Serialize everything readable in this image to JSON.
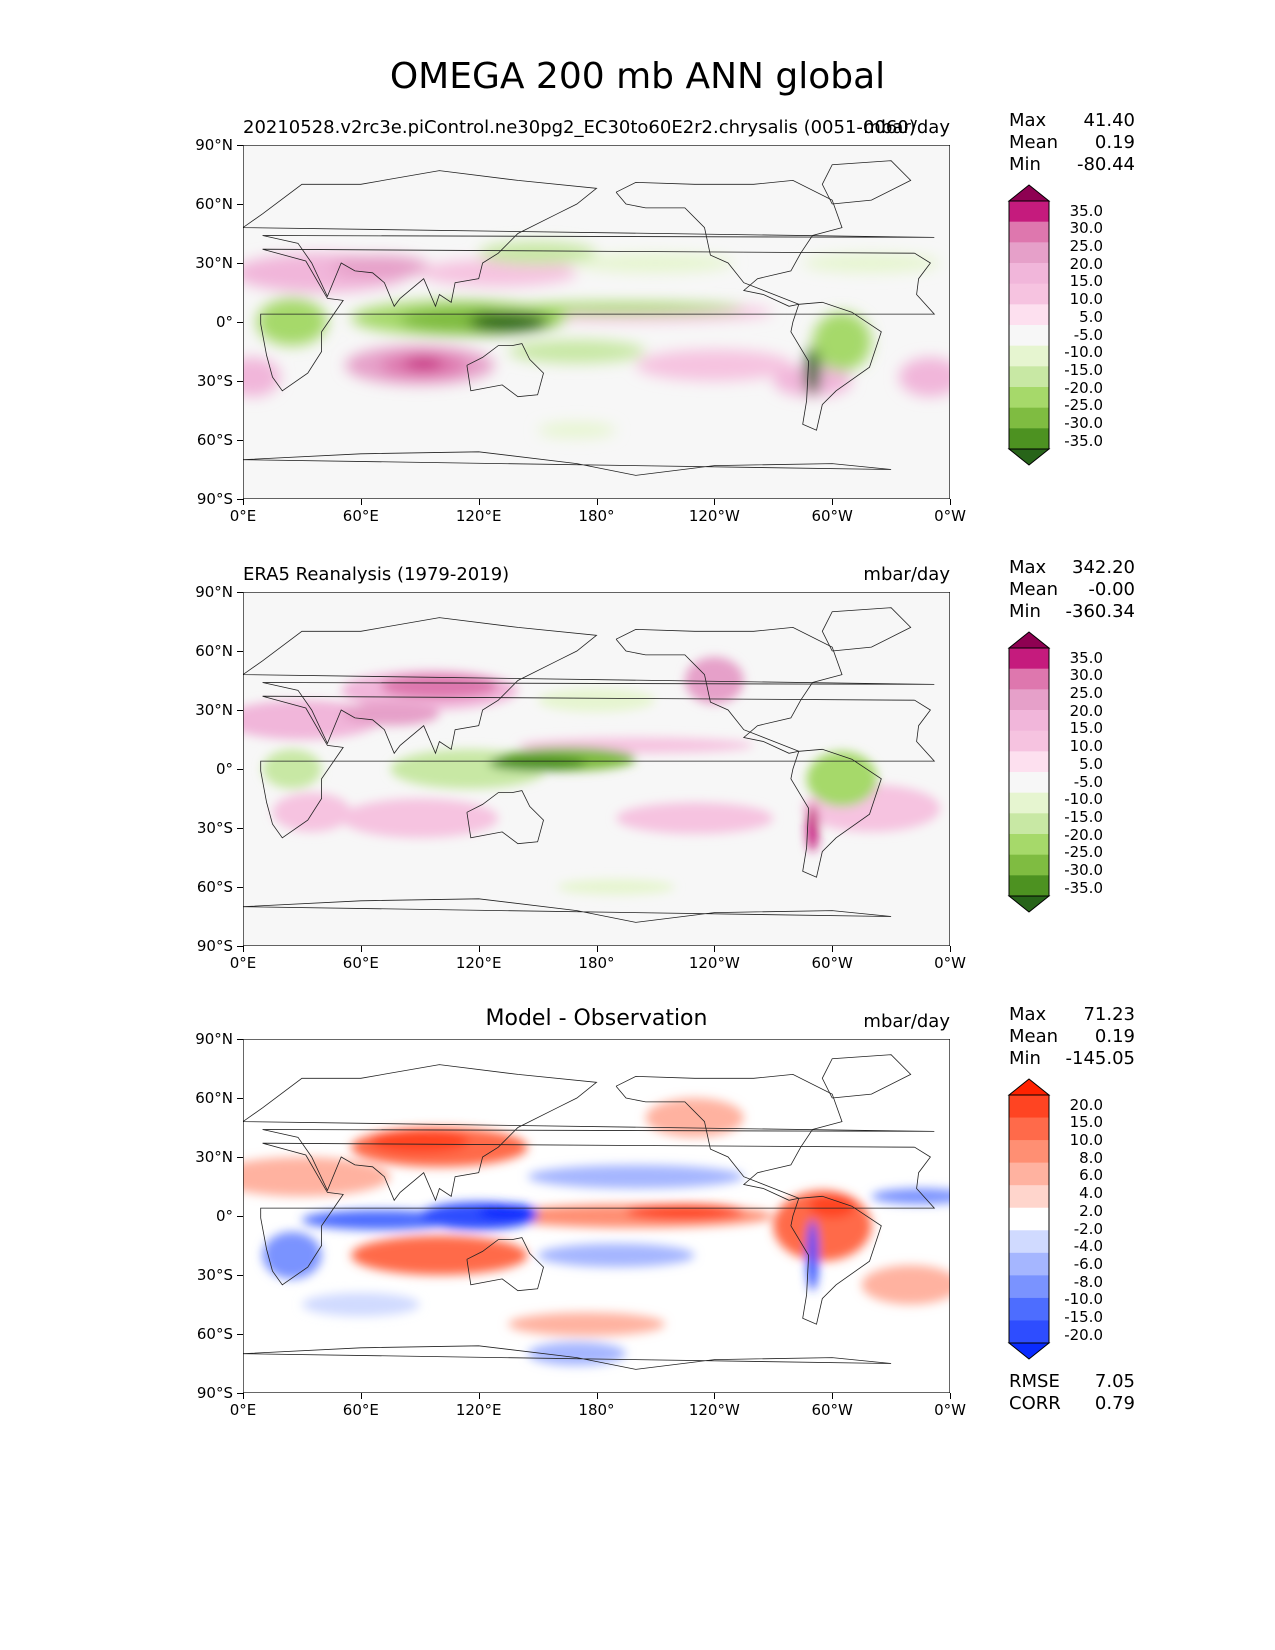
{
  "title": "OMEGA 200 mb ANN global",
  "colors": {
    "piyg": [
      "#276419",
      "#4d9221",
      "#7fbc41",
      "#a6d96a",
      "#c8e8a4",
      "#e6f5d0",
      "#f7f7f7",
      "#fde0ef",
      "#f6c3e0",
      "#f1b6da",
      "#e6a0c9",
      "#de77ae",
      "#c51b7d",
      "#8e0152"
    ],
    "bwr": [
      "#0a2bff",
      "#2e4dff",
      "#4d6dff",
      "#7a93ff",
      "#a5b6ff",
      "#d0daff",
      "#ffffff",
      "#ffd5cc",
      "#ffb2a0",
      "#ff8f73",
      "#ff6a4a",
      "#ff4422",
      "#ff2200"
    ]
  },
  "panels": [
    {
      "id": "model",
      "title_left": "20210528.v2rc3e.piControl.ne30pg2_EC30to60E2r2.chrysalis (0051-0060)",
      "title_right": "mbar/day",
      "title_center": "",
      "stats": {
        "max_label": "Max",
        "max": "41.40",
        "mean_label": "Mean",
        "mean": "0.19",
        "min_label": "Min",
        "min": "-80.44"
      },
      "colorbar": {
        "palette": "piyg",
        "labels": [
          "35.0",
          "30.0",
          "25.0",
          "20.0",
          "15.0",
          "10.0",
          "5.0",
          "-5.0",
          "-10.0",
          "-15.0",
          "-20.0",
          "-25.0",
          "-30.0",
          "-35.0"
        ]
      }
    },
    {
      "id": "obs",
      "title_left": "ERA5 Reanalysis (1979-2019)",
      "title_right": "mbar/day",
      "title_center": "",
      "stats": {
        "max_label": "Max",
        "max": "342.20",
        "mean_label": "Mean",
        "mean": "-0.00",
        "min_label": "Min",
        "min": "-360.34"
      },
      "colorbar": {
        "palette": "piyg",
        "labels": [
          "35.0",
          "30.0",
          "25.0",
          "20.0",
          "15.0",
          "10.0",
          "5.0",
          "-5.0",
          "-10.0",
          "-15.0",
          "-20.0",
          "-25.0",
          "-30.0",
          "-35.0"
        ]
      }
    },
    {
      "id": "diff",
      "title_left": "",
      "title_right": "mbar/day",
      "title_center": "Model - Observation",
      "stats": {
        "max_label": "Max",
        "max": "71.23",
        "mean_label": "Mean",
        "mean": "0.19",
        "min_label": "Min",
        "min": "-145.05"
      },
      "colorbar": {
        "palette": "bwr",
        "labels": [
          "20.0",
          "15.0",
          "10.0",
          "8.0",
          "6.0",
          "4.0",
          "2.0",
          "-2.0",
          "-4.0",
          "-6.0",
          "-8.0",
          "-10.0",
          "-15.0",
          "-20.0"
        ]
      },
      "footer": {
        "rmse_label": "RMSE",
        "rmse": "7.05",
        "corr_label": "CORR",
        "corr": "0.79"
      }
    }
  ],
  "chart_data": {
    "type": "heatmap",
    "projection": "plate-carree",
    "x_ticks": [
      "0°E",
      "60°E",
      "120°E",
      "180°",
      "120°W",
      "60°W",
      "0°W"
    ],
    "y_ticks": [
      "90°N",
      "60°N",
      "30°N",
      "0°",
      "30°S",
      "60°S",
      "90°S"
    ],
    "xlim": [
      0,
      360
    ],
    "ylim": [
      -90,
      90
    ],
    "units": "mbar/day"
  }
}
